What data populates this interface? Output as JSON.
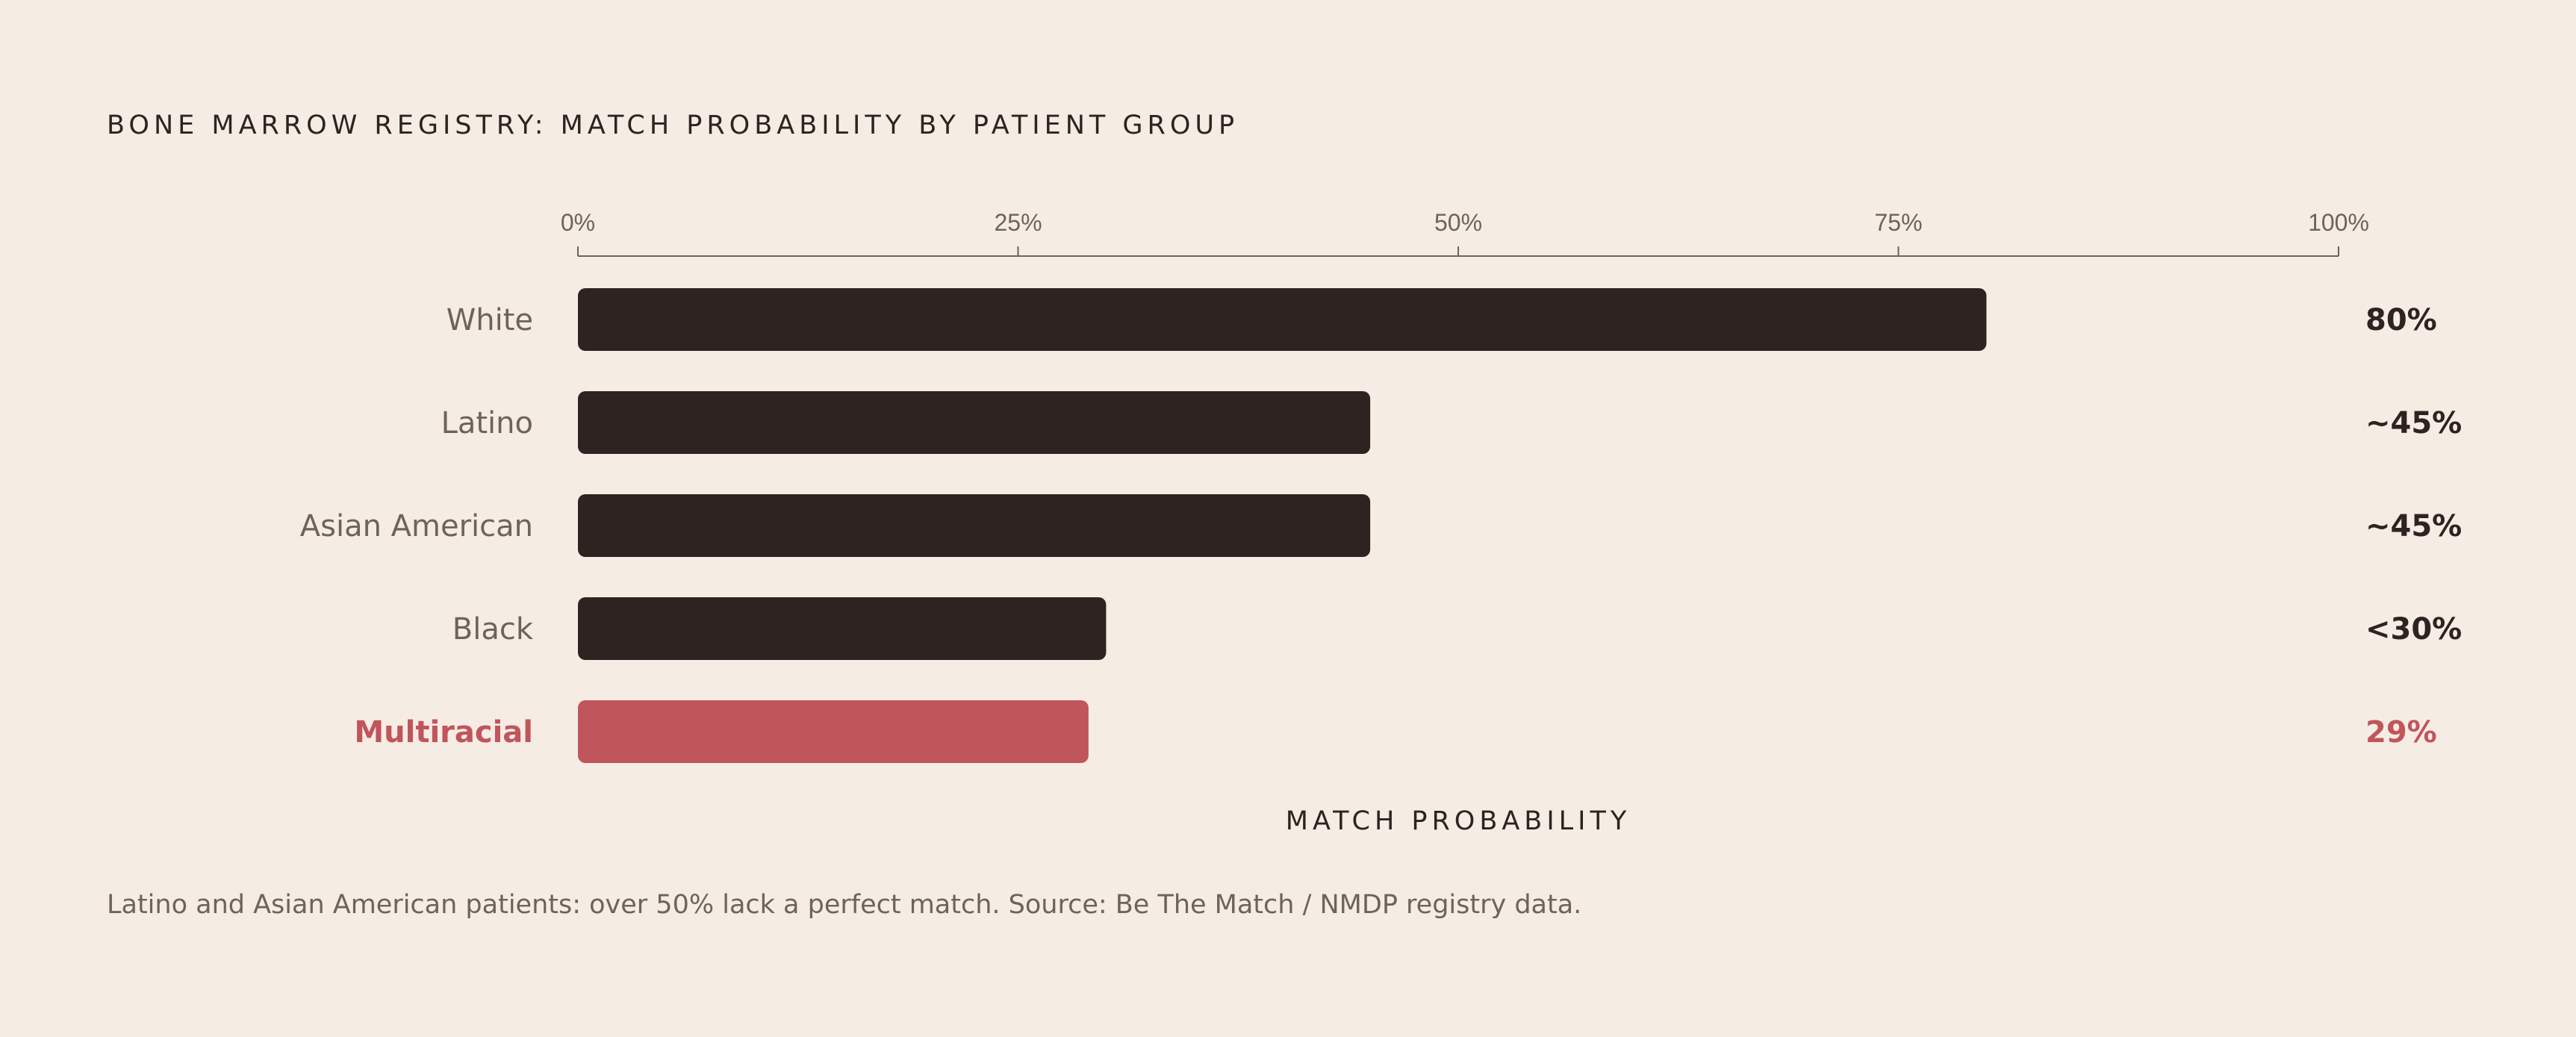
{
  "chart_data": {
    "type": "bar",
    "orientation": "horizontal",
    "title": "BONE MARROW REGISTRY: MATCH PROBABILITY BY PATIENT GROUP",
    "xlabel": "MATCH PROBABILITY",
    "ylabel": "",
    "xlim": [
      0,
      100
    ],
    "ticks": [
      0,
      25,
      50,
      75,
      100
    ],
    "tick_labels": [
      "0%",
      "25%",
      "50%",
      "75%",
      "100%"
    ],
    "categories": [
      "White",
      "Latino",
      "Asian American",
      "Black",
      "Multiracial"
    ],
    "values": [
      80,
      45,
      45,
      30,
      29
    ],
    "value_labels": [
      "80%",
      "~45%",
      "~45%",
      "<30%",
      "29%"
    ],
    "highlight_index": 4,
    "bar_color": "#2e2321",
    "highlight_color": "#c0555b",
    "footnote": "Latino and Asian American patients: over 50% lack a perfect match. Source: Be The Match / NMDP registry data."
  }
}
